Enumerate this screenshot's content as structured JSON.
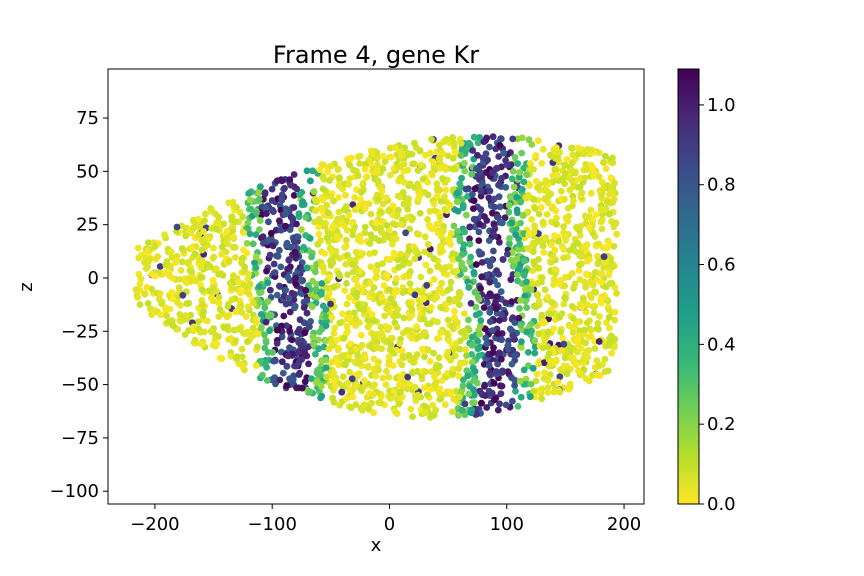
{
  "chart_data": {
    "type": "scatter",
    "title": "Frame 4, gene Kr",
    "xlabel": "x",
    "ylabel": "z",
    "xlim": [
      -240,
      217
    ],
    "ylim": [
      -106,
      98
    ],
    "xticks": [
      -200,
      -100,
      0,
      100,
      200
    ],
    "yticks": [
      -100,
      -75,
      -50,
      -25,
      0,
      25,
      50,
      75
    ],
    "grid": false,
    "colorbar": {
      "range": [
        0.0,
        1.09
      ],
      "ticks": [
        0.0,
        0.2,
        0.4,
        0.6,
        0.8,
        1.0
      ],
      "tick_labels": [
        "0.0",
        "0.2",
        "0.4",
        "0.6",
        "0.8",
        "1.0"
      ],
      "colormap": "viridis_r",
      "colors": [
        "#fde725",
        "#b5de2b",
        "#6ece58",
        "#35b779",
        "#1f9e89",
        "#26828e",
        "#31688e",
        "#3e4989",
        "#482878",
        "#440154"
      ]
    },
    "embryo_shape": {
      "x_range": [
        -216,
        194
      ],
      "z_range": [
        -82,
        74
      ]
    },
    "stripes": [
      {
        "center_x": -88,
        "half_width": 16,
        "value": 1.0
      },
      {
        "center_x": 90,
        "half_width": 16,
        "value": 1.0
      }
    ],
    "background_value": 0.05,
    "point_count": 3200
  }
}
